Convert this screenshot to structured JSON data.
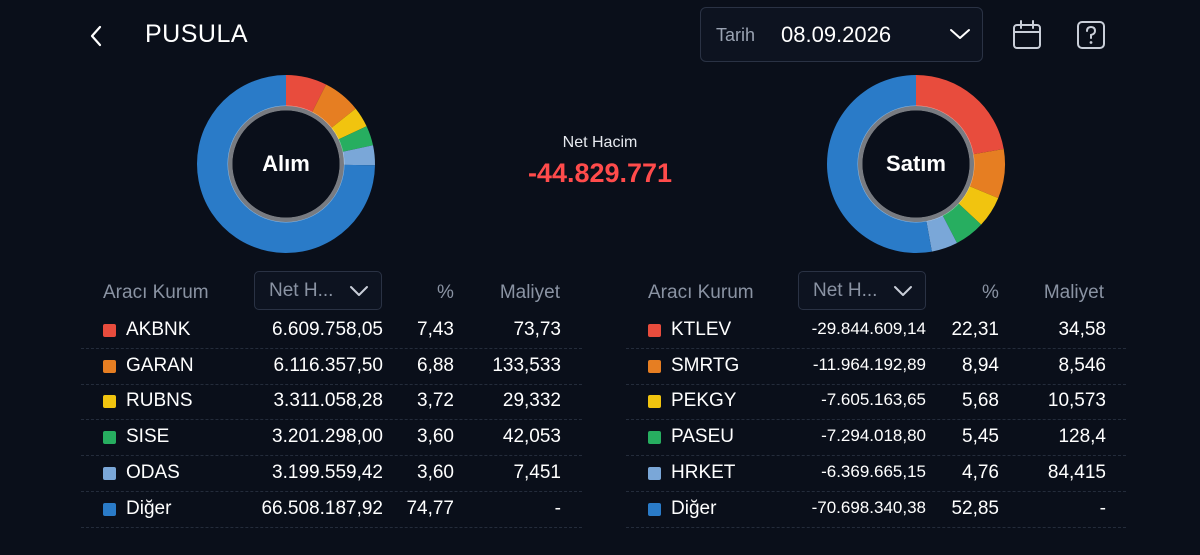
{
  "header": {
    "title": "PUSULA",
    "date_label": "Tarih",
    "date_value": "08.09.2026"
  },
  "net": {
    "label": "Net Hacim",
    "value": "-44.829.771"
  },
  "colors": {
    "red": "#e84c3d",
    "orange": "#e67e22",
    "yellow": "#f1c40f",
    "green": "#27ae60",
    "lightblue": "#7aa7d8",
    "blue": "#2a7bc8",
    "net_negative": "#ff4b4b",
    "background": "#0a0f1a"
  },
  "buy": {
    "donut_label": "Alım",
    "headers": {
      "broker": "Aracı Kurum",
      "sort": "Net H...",
      "pct": "%",
      "cost": "Maliyet"
    },
    "rows": [
      {
        "name": "AKBNK",
        "net": "6.609.758,05",
        "pct": "7,43",
        "cost": "73,73",
        "color": "#e84c3d",
        "share": 7.43
      },
      {
        "name": "GARAN",
        "net": "6.116.357,50",
        "pct": "6,88",
        "cost": "133,533",
        "color": "#e67e22",
        "share": 6.88
      },
      {
        "name": "RUBNS",
        "net": "3.311.058,28",
        "pct": "3,72",
        "cost": "29,332",
        "color": "#f1c40f",
        "share": 3.72
      },
      {
        "name": "SISE",
        "net": "3.201.298,00",
        "pct": "3,60",
        "cost": "42,053",
        "color": "#27ae60",
        "share": 3.6
      },
      {
        "name": "ODAS",
        "net": "3.199.559,42",
        "pct": "3,60",
        "cost": "7,451",
        "color": "#7aa7d8",
        "share": 3.6
      },
      {
        "name": "Diğer",
        "net": "66.508.187,92",
        "pct": "74,77",
        "cost": "-",
        "color": "#2a7bc8",
        "share": 74.77
      }
    ]
  },
  "sell": {
    "donut_label": "Satım",
    "headers": {
      "broker": "Aracı Kurum",
      "sort": "Net H...",
      "pct": "%",
      "cost": "Maliyet"
    },
    "rows": [
      {
        "name": "KTLEV",
        "net": "-29.844.609,14",
        "pct": "22,31",
        "cost": "34,58",
        "color": "#e84c3d",
        "share": 22.31
      },
      {
        "name": "SMRTG",
        "net": "-11.964.192,89",
        "pct": "8,94",
        "cost": "8,546",
        "color": "#e67e22",
        "share": 8.94
      },
      {
        "name": "PEKGY",
        "net": "-7.605.163,65",
        "pct": "5,68",
        "cost": "10,573",
        "color": "#f1c40f",
        "share": 5.68
      },
      {
        "name": "PASEU",
        "net": "-7.294.018,80",
        "pct": "5,45",
        "cost": "128,4",
        "color": "#27ae60",
        "share": 5.45
      },
      {
        "name": "HRKET",
        "net": "-6.369.665,15",
        "pct": "4,76",
        "cost": "84,415",
        "color": "#7aa7d8",
        "share": 4.76
      },
      {
        "name": "Diğer",
        "net": "-70.698.340,38",
        "pct": "52,85",
        "cost": "-",
        "color": "#2a7bc8",
        "share": 52.85
      }
    ]
  }
}
